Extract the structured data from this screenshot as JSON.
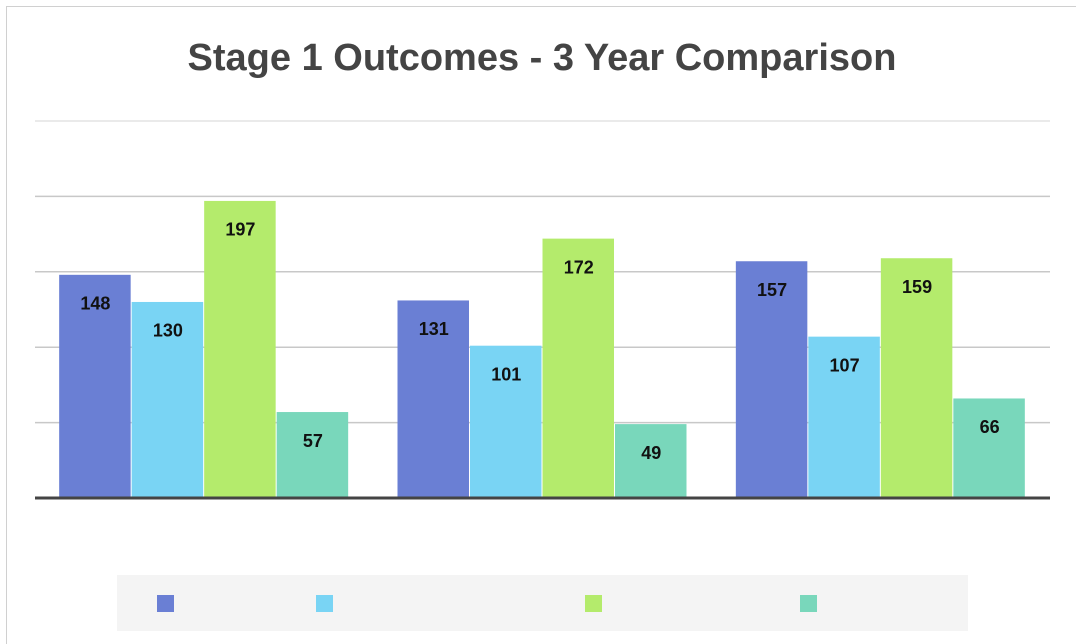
{
  "chart_data": {
    "type": "bar",
    "title": "Stage 1 Outcomes - 3 Year Comparison",
    "categories": [
      null,
      null,
      null
    ],
    "series": [
      {
        "color": "#6a7fd4",
        "values": [
          148,
          131,
          157
        ]
      },
      {
        "color": "#79d4f4",
        "values": [
          130,
          101,
          107
        ]
      },
      {
        "color": "#b4eb6c",
        "values": [
          197,
          172,
          159
        ]
      },
      {
        "color": "#79d7bb",
        "values": [
          57,
          49,
          66
        ]
      }
    ],
    "ylim": [
      0,
      250
    ],
    "yticks": [
      0,
      50,
      100,
      150,
      200,
      250
    ],
    "grid": true,
    "data_labels": true
  }
}
